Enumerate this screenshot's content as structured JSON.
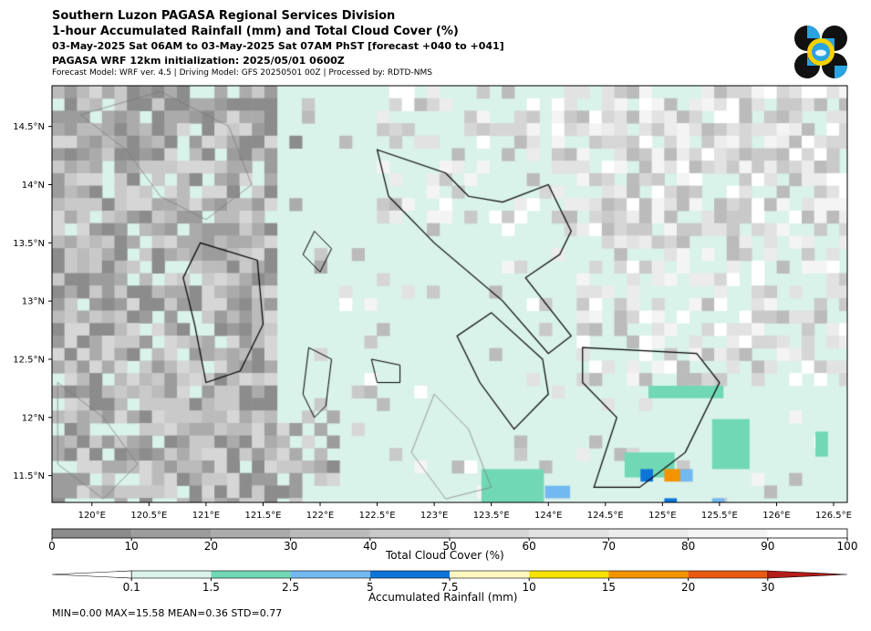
{
  "header": {
    "title_line1": "Southern Luzon PAGASA Regional Services Division",
    "title_line2": "1-hour Accumulated Rainfall (mm) and Total Cloud Cover (%)",
    "title_line3": "03-May-2025 Sat 06AM to 03-May-2025 Sat 07AM PhST [forecast +040 to +041]",
    "title_line4": "PAGASA WRF 12km initialization: 2025/05/01 0600Z",
    "title_line5": "Forecast Model: WRF ver. 4.5 | Driving Model: GFS 20250501 00Z | Processed by: RDTD-NMS"
  },
  "map": {
    "lat_ticks": [
      "14.5°N",
      "14°N",
      "13.5°N",
      "13°N",
      "12.5°N",
      "12°N",
      "11.5°N"
    ],
    "lon_ticks": [
      "120°E",
      "120.5°E",
      "121°E",
      "121.5°E",
      "122°E",
      "122.5°E",
      "123°E",
      "123.5°E",
      "124°E",
      "124.5°E",
      "125°E",
      "125.5°E",
      "126°E",
      "126.5°E"
    ],
    "land_color": "#ffffff",
    "coast_color": "#000000",
    "minor_coast_color": "#777777"
  },
  "cloud_colorbar": {
    "label": "Total Cloud Cover (%)",
    "ticks": [
      "0",
      "10",
      "20",
      "30",
      "40",
      "50",
      "60",
      "70",
      "80",
      "90",
      "100"
    ],
    "colors": [
      "#8c8c8c",
      "#9c9c9c",
      "#ababab",
      "#bbbbbb",
      "#c9c9c9",
      "#d6d6d6",
      "#e2e2e2",
      "#ececec",
      "#f4f4f4",
      "#ffffff"
    ]
  },
  "rain_colorbar": {
    "label": "Accumulated Rainfall (mm)",
    "ticks": [
      "0.1",
      "1.5",
      "2.5",
      "5",
      "7.5",
      "10",
      "15",
      "20",
      "30"
    ],
    "colors": [
      "#ffffff",
      "#d9f2ea",
      "#70d8b5",
      "#73b9f1",
      "#0d74d8",
      "#fff8c0",
      "#f6e200",
      "#f39300",
      "#ea5a10",
      "#b51d18"
    ]
  },
  "stats": "MIN=0.00   MAX=15.58   MEAN=0.36   STD=0.77"
}
